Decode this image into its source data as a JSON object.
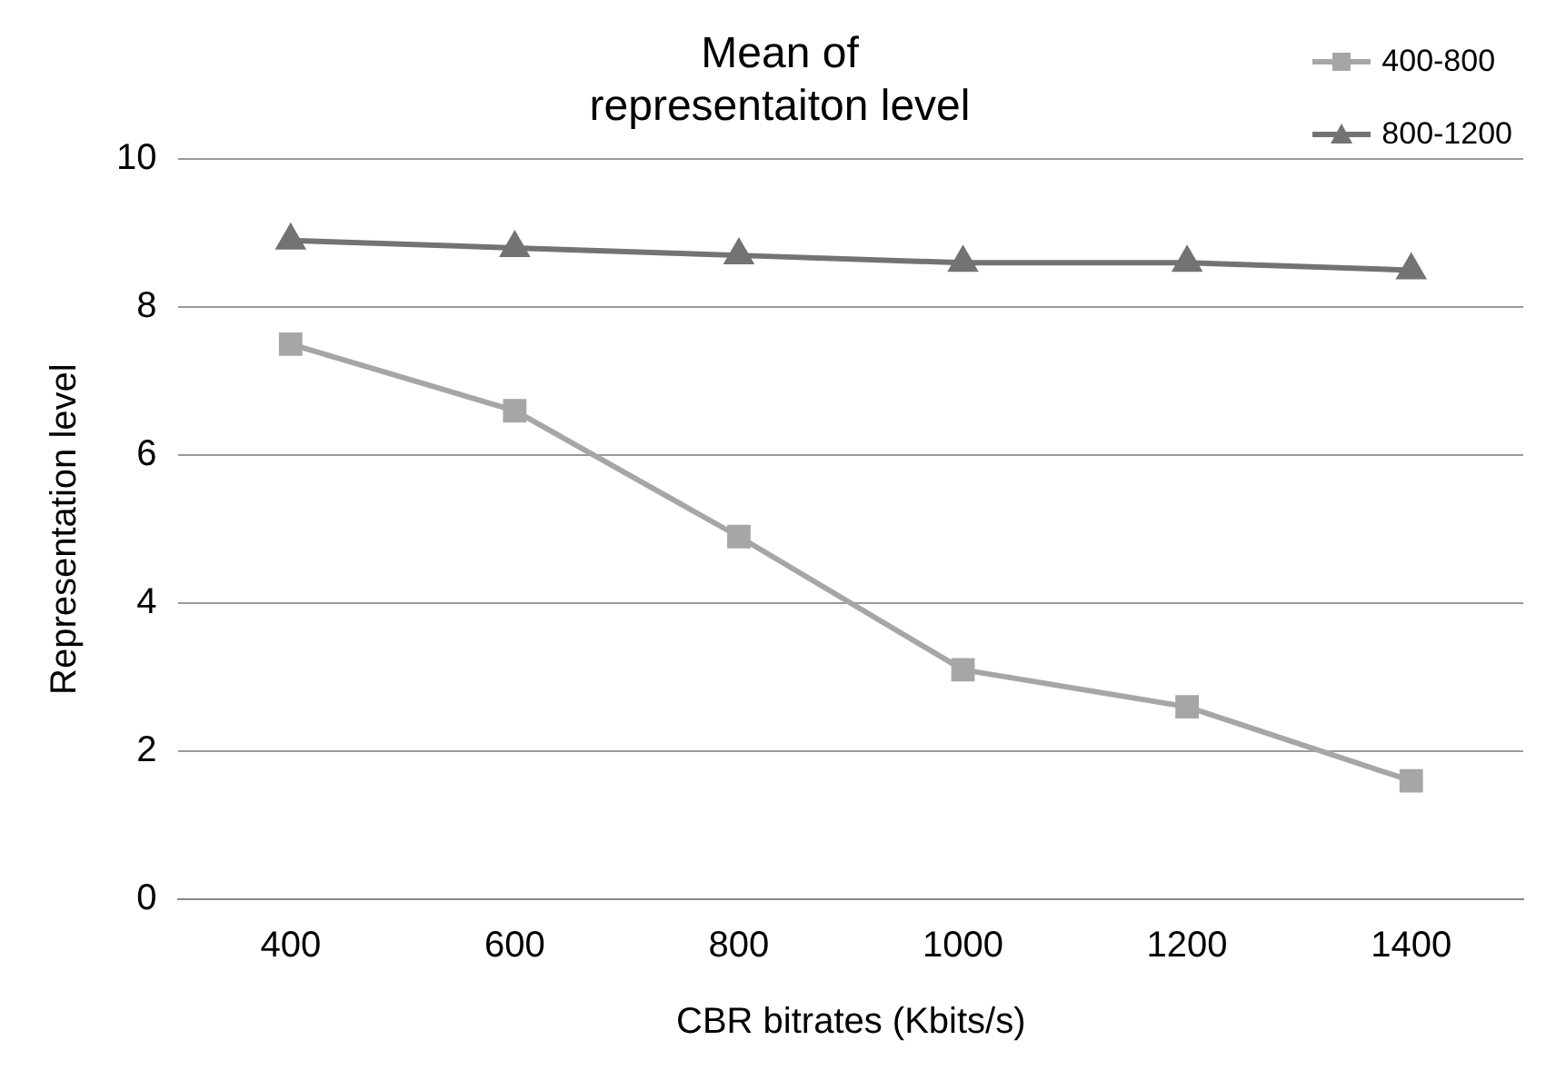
{
  "chart_data": {
    "type": "line",
    "title": "Mean of\nrepresentaiton level",
    "xlabel": "CBR bitrates (Kbits/s)",
    "ylabel": "Representation level",
    "categories": [
      "400",
      "600",
      "800",
      "1000",
      "1200",
      "1400"
    ],
    "series": [
      {
        "name": "400-800",
        "color": "#a6a6a6",
        "marker": "square",
        "values": [
          7.5,
          6.6,
          4.9,
          3.1,
          2.6,
          1.6
        ]
      },
      {
        "name": "800-1200",
        "color": "#737373",
        "marker": "triangle",
        "values": [
          8.9,
          8.8,
          8.7,
          8.6,
          8.6,
          8.5
        ]
      }
    ],
    "ylim": [
      0,
      10
    ],
    "yticks": [
      0,
      2,
      4,
      6,
      8,
      10
    ],
    "grid": "y",
    "legend": "top right",
    "line_style": "solid"
  }
}
